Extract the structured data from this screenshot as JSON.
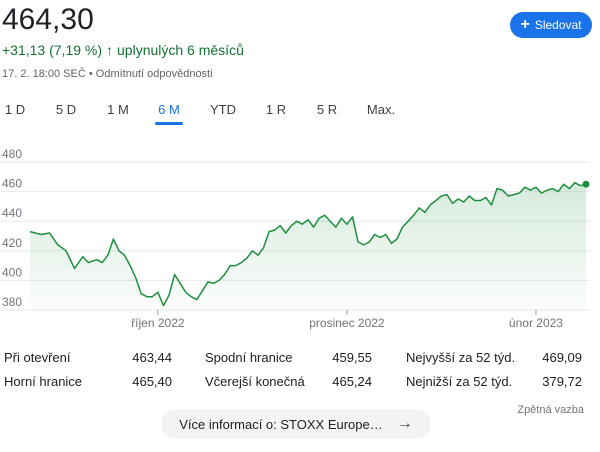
{
  "header": {
    "price": "464,30",
    "change": "+31,13 (7,19 %)",
    "change_arrow": "↑",
    "period": "uplynulých 6 měsíců",
    "timestamp": "17. 2. 18:00 SEČ",
    "separator": "•",
    "disclaimer": "Odmítnutí odpovědnosti",
    "follow_label": "Sledovat",
    "follow_icon": "+"
  },
  "tabs": [
    {
      "label": "1 D"
    },
    {
      "label": "5 D"
    },
    {
      "label": "1 M"
    },
    {
      "label": "6 M",
      "active": true
    },
    {
      "label": "YTD"
    },
    {
      "label": "1 R"
    },
    {
      "label": "5 R"
    },
    {
      "label": "Max."
    }
  ],
  "colors": {
    "accent": "#1a73e8",
    "positive": "#137333",
    "line": "#1e8e3e"
  },
  "chart_data": {
    "type": "area",
    "ylim": [
      380,
      480
    ],
    "yticks": [
      "480",
      "460",
      "440",
      "420",
      "400",
      "380"
    ],
    "x_tick_labels": [
      "říjen 2022",
      "prosinec 2022",
      "únor 2023"
    ],
    "x_tick_positions": [
      0.23,
      0.57,
      0.91
    ],
    "grid": true,
    "x": [
      0.0,
      0.02,
      0.035,
      0.05,
      0.065,
      0.08,
      0.095,
      0.105,
      0.12,
      0.13,
      0.14,
      0.15,
      0.16,
      0.17,
      0.18,
      0.19,
      0.2,
      0.21,
      0.22,
      0.23,
      0.24,
      0.25,
      0.26,
      0.27,
      0.28,
      0.29,
      0.3,
      0.31,
      0.32,
      0.33,
      0.34,
      0.35,
      0.36,
      0.37,
      0.38,
      0.39,
      0.4,
      0.41,
      0.42,
      0.43,
      0.44,
      0.45,
      0.46,
      0.47,
      0.48,
      0.49,
      0.5,
      0.51,
      0.52,
      0.53,
      0.54,
      0.55,
      0.56,
      0.57,
      0.58,
      0.59,
      0.6,
      0.61,
      0.62,
      0.63,
      0.64,
      0.65,
      0.66,
      0.67,
      0.68,
      0.69,
      0.7,
      0.71,
      0.72,
      0.73,
      0.74,
      0.75,
      0.76,
      0.77,
      0.78,
      0.79,
      0.8,
      0.81,
      0.82,
      0.83,
      0.84,
      0.85,
      0.86,
      0.87,
      0.88,
      0.89,
      0.9,
      0.91,
      0.92,
      0.93,
      0.94,
      0.95,
      0.96,
      0.97,
      0.98,
      0.99,
      1.0
    ],
    "values": [
      433,
      431,
      432,
      424,
      420,
      408,
      416,
      412,
      414,
      412,
      417,
      428,
      420,
      417,
      410,
      402,
      391,
      389,
      389,
      392,
      383,
      390,
      404,
      398,
      392,
      389,
      387,
      393,
      399,
      398,
      400,
      404,
      410,
      410,
      412,
      415,
      420,
      417,
      422,
      433,
      434,
      437,
      432,
      437,
      440,
      438,
      441,
      436,
      442,
      444,
      440,
      436,
      442,
      438,
      443,
      426,
      424,
      426,
      431,
      429,
      431,
      425,
      428,
      436,
      440,
      444,
      449,
      446,
      451,
      454,
      457,
      458,
      452,
      455,
      453,
      457,
      454,
      454,
      456,
      451,
      462,
      461,
      457,
      458,
      459,
      463,
      461,
      463,
      459,
      461,
      462,
      460,
      465,
      462,
      466,
      464,
      465
    ]
  },
  "stats": {
    "col1": [
      {
        "label": "Při otevření",
        "value": "463,44"
      },
      {
        "label": "Horní hranice",
        "value": "465,40"
      }
    ],
    "col2": [
      {
        "label": "Spodní hranice",
        "value": "459,55"
      },
      {
        "label": "Včerejší konečná",
        "value": "465,24"
      }
    ],
    "col3": [
      {
        "label": "Nejvyšší za 52 týd.",
        "value": "469,09"
      },
      {
        "label": "Nejnižší za 52 týd.",
        "value": "379,72"
      }
    ]
  },
  "footer": {
    "feedback": "Zpětná vazba",
    "more_label": "Více informací o: STOXX Europe…",
    "more_icon": "→"
  }
}
